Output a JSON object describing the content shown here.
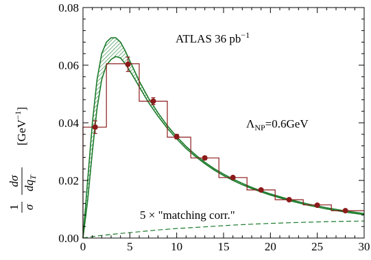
{
  "chart_data": {
    "type": "line",
    "title": "",
    "xlabel": "",
    "ylabel": {
      "num": "1",
      "den": "σ",
      "dnum": "dσ",
      "dden": "dq",
      "dden_sub": "T",
      "unit": "[GeV",
      "unit_sup": "−1",
      "unit_close": "]"
    },
    "xlim": [
      0,
      30
    ],
    "ylim": [
      0,
      0.08
    ],
    "x_ticks": [
      0,
      5,
      10,
      15,
      20,
      25,
      30
    ],
    "y_ticks": [
      0.0,
      0.02,
      0.04,
      0.06,
      0.08
    ],
    "x_tick_labels": [
      "0",
      "5",
      "10",
      "15",
      "20",
      "25",
      "30"
    ],
    "y_tick_labels": [
      "0.00",
      "0.02",
      "0.04",
      "0.06",
      "0.08"
    ],
    "annotations": {
      "experiment": "ATLAS 36 pb",
      "experiment_sup": "−1",
      "lambda": "Λ",
      "lambda_sub": "NP",
      "lambda_value": "=0.6GeV",
      "matching": "5 × \"matching corr.\""
    },
    "series": [
      {
        "kind": "histogram",
        "color": "#8b1a1a",
        "bins": [
          {
            "x0": 0,
            "x1": 2.5,
            "y": 0.0385
          },
          {
            "x0": 2.5,
            "x1": 6,
            "y": 0.0605
          },
          {
            "x0": 6,
            "x1": 9,
            "y": 0.0475
          },
          {
            "x0": 9,
            "x1": 11.5,
            "y": 0.035
          },
          {
            "x0": 11.5,
            "x1": 14.5,
            "y": 0.0278
          },
          {
            "x0": 14.5,
            "x1": 17.5,
            "y": 0.021
          },
          {
            "x0": 17.5,
            "x1": 20.5,
            "y": 0.0167
          },
          {
            "x0": 20.5,
            "x1": 23.5,
            "y": 0.0133
          },
          {
            "x0": 23.5,
            "x1": 26.5,
            "y": 0.0115
          },
          {
            "x0": 26.5,
            "x1": 30,
            "y": 0.0095
          }
        ]
      },
      {
        "kind": "points",
        "color": "#8b1a1a",
        "points": [
          {
            "x": 1.3,
            "y": 0.0385,
            "err": 0.0022
          },
          {
            "x": 4.8,
            "y": 0.0603,
            "err": 0.0025
          },
          {
            "x": 7.5,
            "y": 0.0475,
            "err": 0.0012
          },
          {
            "x": 10.0,
            "y": 0.0352,
            "err": 0.0008
          },
          {
            "x": 13.0,
            "y": 0.0278,
            "err": 0.0006
          },
          {
            "x": 16.0,
            "y": 0.021,
            "err": 0.0005
          },
          {
            "x": 19.0,
            "y": 0.0167,
            "err": 0.0004
          },
          {
            "x": 22.0,
            "y": 0.0133,
            "err": 0.0004
          },
          {
            "x": 25.0,
            "y": 0.0114,
            "err": 0.0004
          },
          {
            "x": 28.0,
            "y": 0.0095,
            "err": 0.0003
          }
        ]
      },
      {
        "kind": "band",
        "color": "#1a7a2a",
        "x": [
          0,
          0.5,
          1,
          1.5,
          2,
          2.5,
          3,
          3.5,
          4,
          4.5,
          5,
          5.5,
          6,
          7,
          8,
          9,
          10,
          11,
          12,
          13,
          14,
          15,
          16,
          17,
          18,
          19,
          20,
          22,
          24,
          26,
          28,
          30
        ],
        "upper": [
          0,
          0.02,
          0.04,
          0.055,
          0.064,
          0.068,
          0.0695,
          0.0695,
          0.068,
          0.065,
          0.0615,
          0.058,
          0.0545,
          0.0485,
          0.0435,
          0.039,
          0.0352,
          0.0318,
          0.0289,
          0.0263,
          0.0241,
          0.0222,
          0.0205,
          0.019,
          0.0176,
          0.0164,
          0.0153,
          0.0134,
          0.0118,
          0.0105,
          0.0094,
          0.0085
        ],
        "lower": [
          0,
          0.013,
          0.03,
          0.045,
          0.055,
          0.06,
          0.062,
          0.063,
          0.0625,
          0.0605,
          0.058,
          0.0553,
          0.0525,
          0.047,
          0.0423,
          0.0381,
          0.0344,
          0.0311,
          0.0283,
          0.0258,
          0.0236,
          0.0217,
          0.02,
          0.0185,
          0.0172,
          0.016,
          0.0149,
          0.013,
          0.0114,
          0.0101,
          0.009,
          0.0081
        ]
      },
      {
        "kind": "dashed",
        "color": "#1a7a2a",
        "x": [
          0,
          1,
          2,
          4,
          6,
          8,
          10,
          12,
          14,
          16,
          18,
          20,
          22,
          24,
          26,
          28,
          30
        ],
        "y": [
          0,
          0.0005,
          0.0009,
          0.0016,
          0.0022,
          0.0028,
          0.0033,
          0.0037,
          0.0041,
          0.0045,
          0.0048,
          0.0051,
          0.0053,
          0.0055,
          0.0057,
          0.0058,
          0.0059
        ]
      }
    ]
  }
}
